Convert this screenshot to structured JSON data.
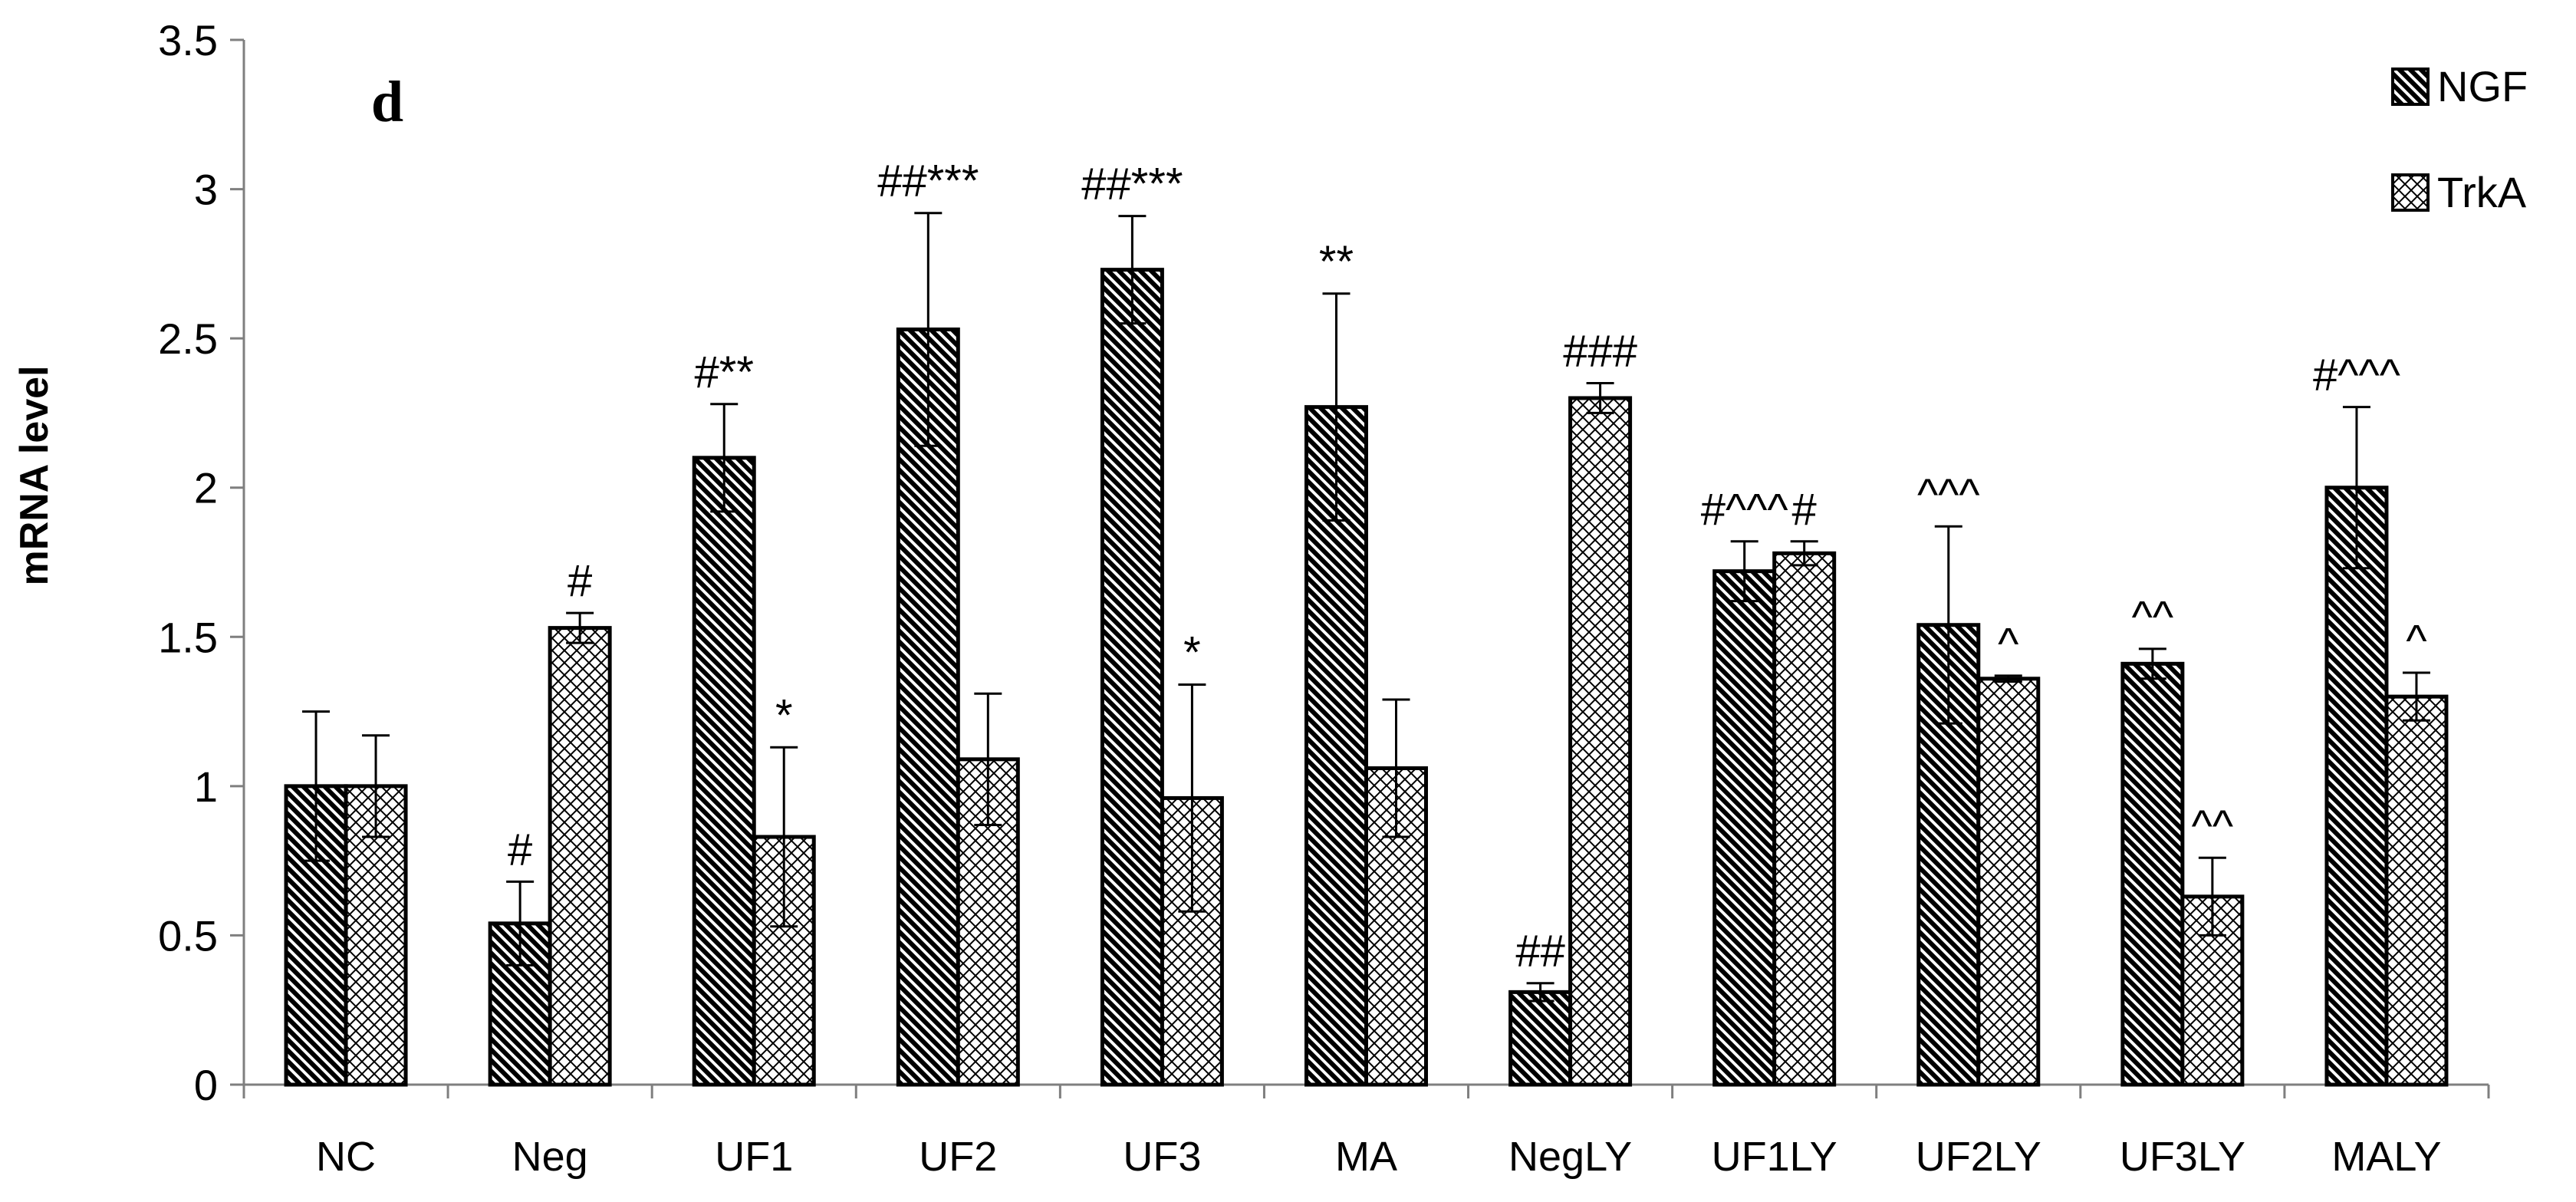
{
  "chart_data": {
    "type": "bar",
    "panel_label": "d",
    "ylabel": "mRNA level",
    "xlabel": "",
    "ylim": [
      0,
      3.5
    ],
    "yticks": [
      "0",
      "0.5",
      "1",
      "1.5",
      "2",
      "2.5",
      "3",
      "3.5"
    ],
    "grid": false,
    "legend_position": "top-right",
    "categories": [
      "NC",
      "Neg",
      "UF1",
      "UF2",
      "UF3",
      "MA",
      "NegLY",
      "UF1LY",
      "UF2LY",
      "UF3LY",
      "MALY"
    ],
    "series": [
      {
        "name": "NGF",
        "pattern": "diagonal-dense",
        "values": [
          1.0,
          0.54,
          2.1,
          2.53,
          2.73,
          2.27,
          0.31,
          1.72,
          1.54,
          1.41,
          2.0
        ],
        "errors": [
          0.25,
          0.14,
          0.18,
          0.39,
          0.18,
          0.38,
          0.03,
          0.1,
          0.33,
          0.05,
          0.27
        ],
        "annotations": [
          "",
          "#",
          "#**",
          "##***",
          "##***",
          "**",
          "##",
          "#^^^",
          "^^^",
          "^^",
          "#^^^"
        ]
      },
      {
        "name": "TrkA",
        "pattern": "crosshatch",
        "values": [
          1.0,
          1.53,
          0.83,
          1.09,
          0.96,
          1.06,
          2.3,
          1.78,
          1.36,
          0.63,
          1.3
        ],
        "errors": [
          0.17,
          0.05,
          0.3,
          0.22,
          0.38,
          0.23,
          0.05,
          0.04,
          0.01,
          0.13,
          0.08
        ],
        "annotations": [
          "",
          "#",
          "*",
          "",
          "*",
          "",
          "###",
          "#",
          "^",
          "^^",
          "^"
        ]
      }
    ]
  }
}
